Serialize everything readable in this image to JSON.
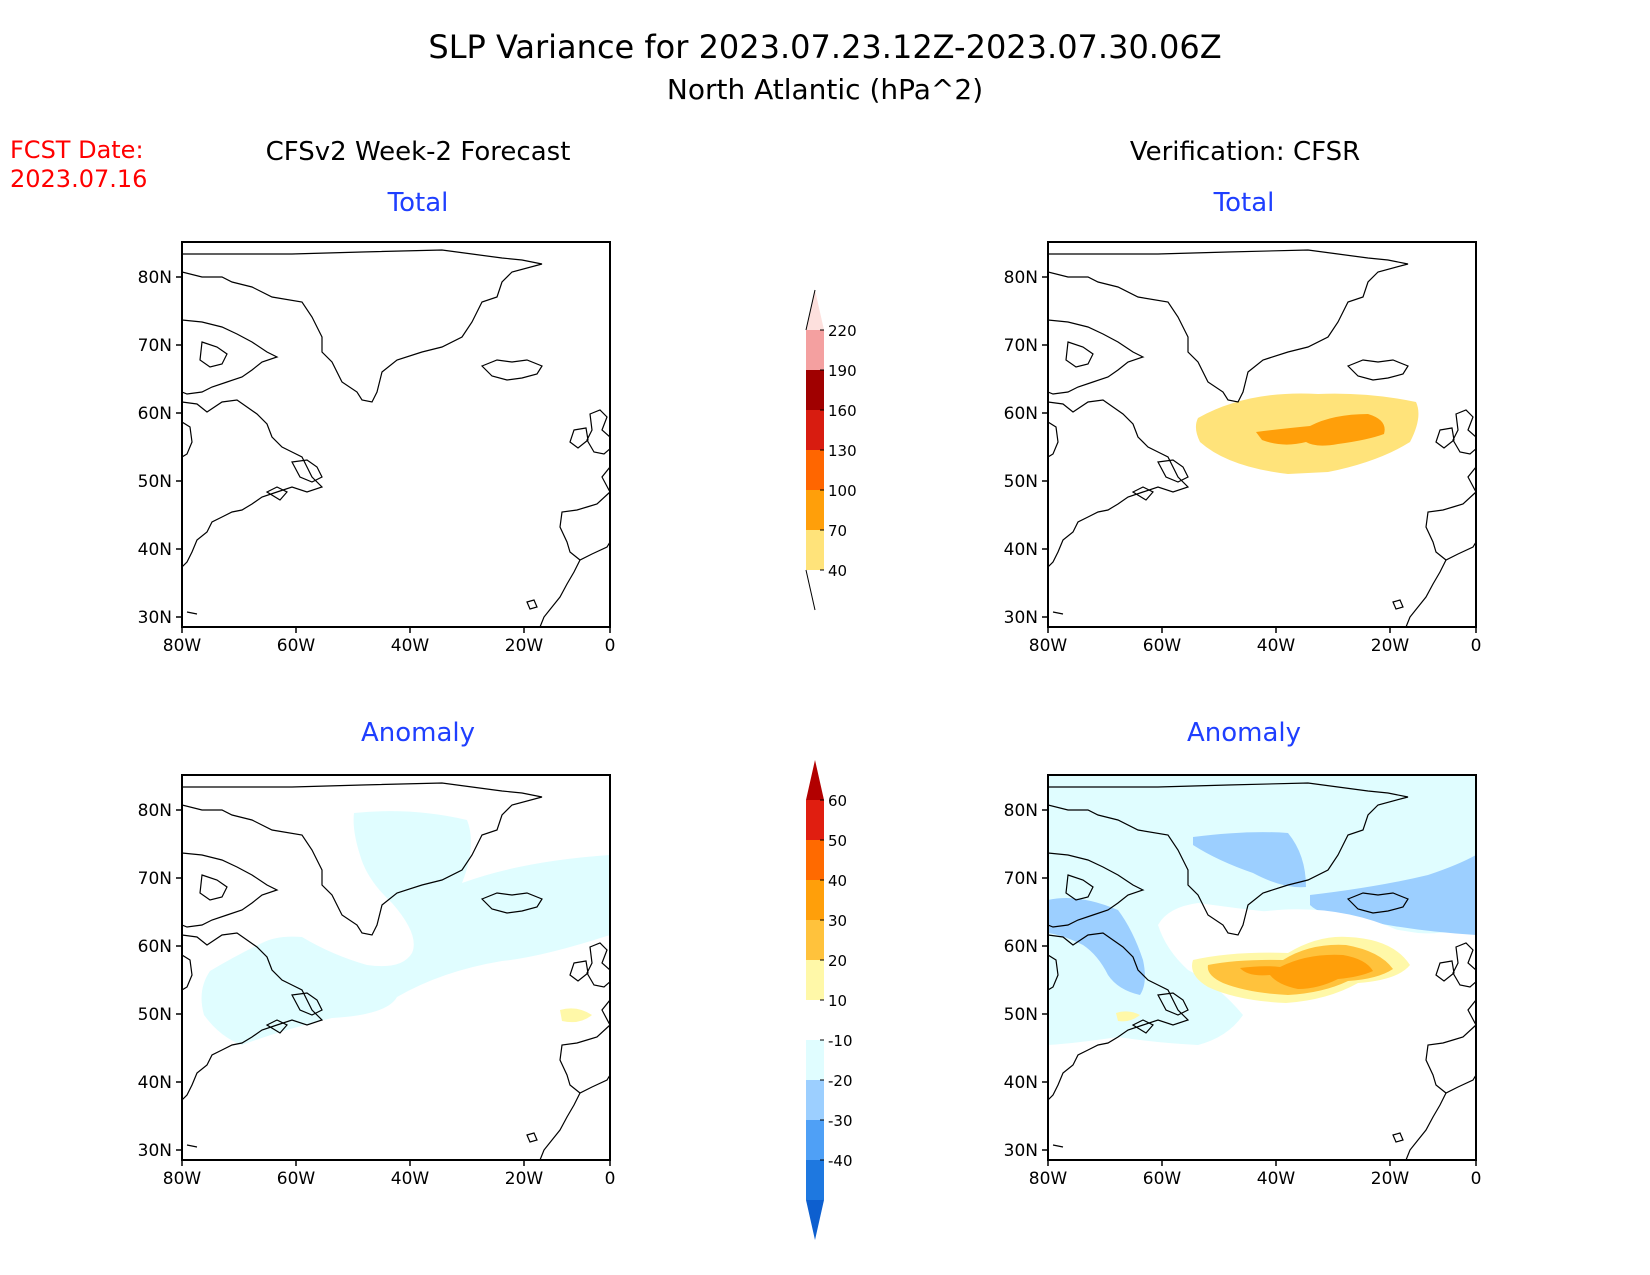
{
  "header": {
    "title_line1": "SLP Variance for 2023.07.23.12Z-2023.07.30.06Z",
    "title_line2": "North Atlantic (hPa^2)"
  },
  "fcst": {
    "label": "FCST Date:",
    "date": "2023.07.16",
    "color": "#ff0000"
  },
  "columns": {
    "left_title": "CFSv2 Week-2 Forecast",
    "right_title": "Verification: CFSR"
  },
  "rows": {
    "top_label": "Total",
    "bottom_label": "Anomaly",
    "label_color": "#1f3fff"
  },
  "axes": {
    "lat_ticks": [
      "80N",
      "70N",
      "60N",
      "50N",
      "40N",
      "30N"
    ],
    "lon_ticks": [
      "80W",
      "60W",
      "40W",
      "20W",
      "0"
    ]
  },
  "colorbars": {
    "total": {
      "levels": [
        "220",
        "190",
        "160",
        "130",
        "100",
        "70",
        "40"
      ],
      "colors": [
        "#fde0dd",
        "#f4a0a0",
        "#a00000",
        "#d81c10",
        "#ff6600",
        "#ff9f0a",
        "#ffe37a"
      ]
    },
    "anomaly": {
      "levels": [
        "60",
        "50",
        "40",
        "30",
        "20",
        "10",
        "-10",
        "-20",
        "-30",
        "-40"
      ],
      "colors": [
        "#b20000",
        "#e01e10",
        "#ff6a00",
        "#ff9f0a",
        "#ffc23c",
        "#fff8a8",
        "#ffffff",
        "#e0fdff",
        "#9ccfff",
        "#4fa0f6",
        "#1e78e0",
        "#0d5fcf"
      ]
    }
  }
}
